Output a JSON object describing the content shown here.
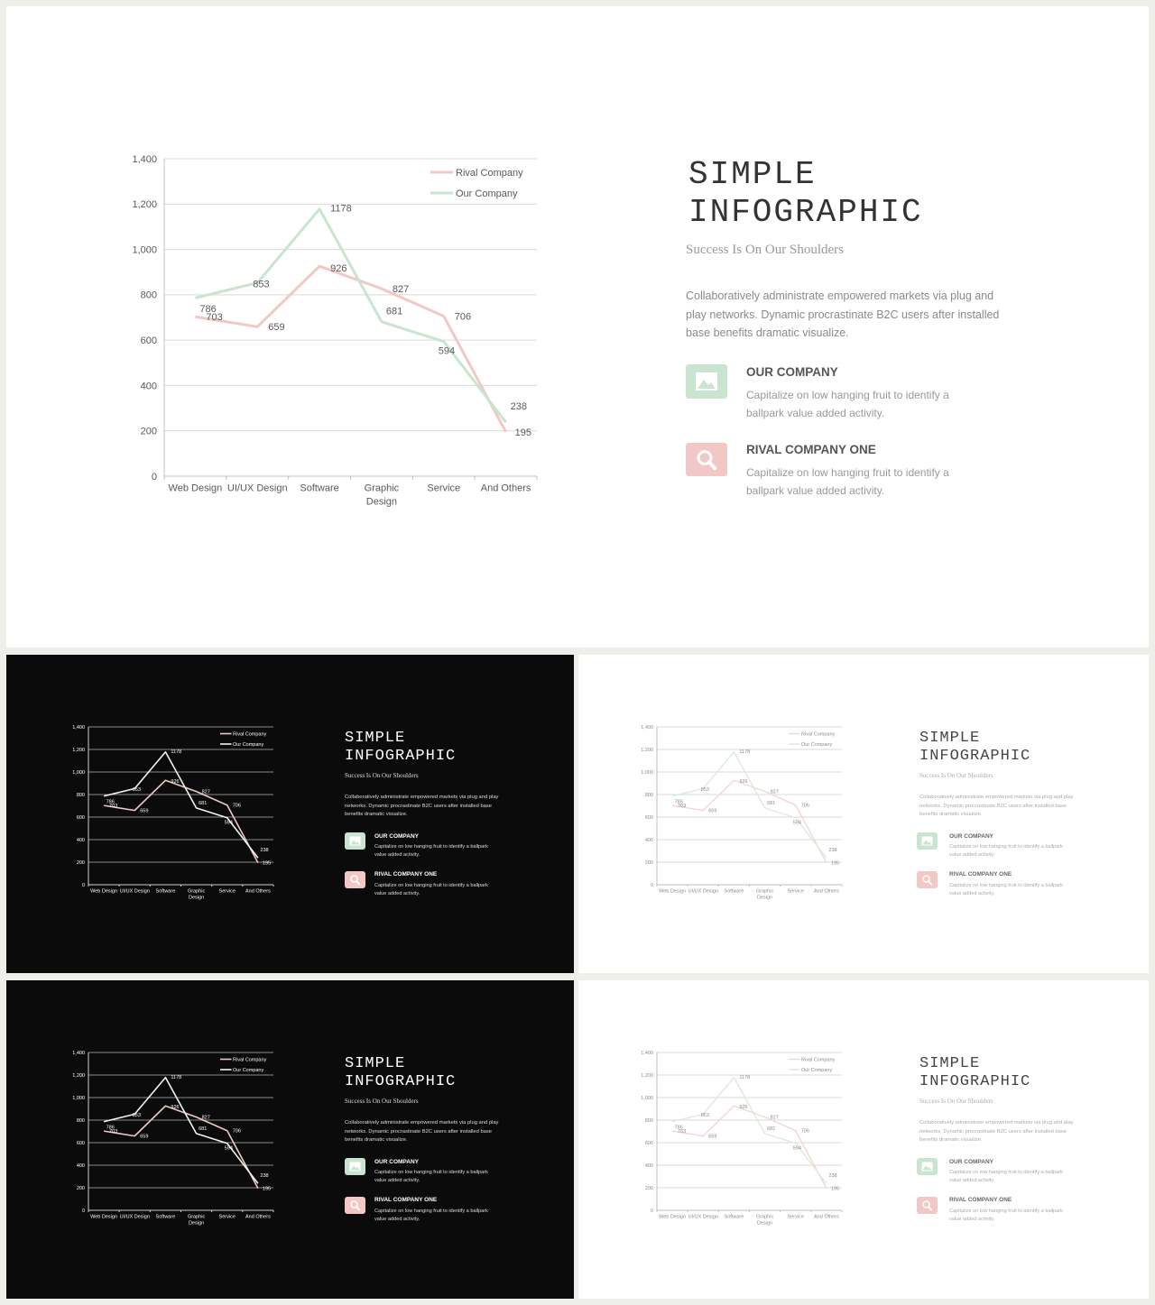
{
  "slide": {
    "title": "SIMPLE\nINFOGRAPHIC",
    "subtitle": "Success Is On Our Shoulders",
    "body": "Collaboratively administrate empowered  markets via plug and play networks. Dynamic procrastinate B2C users after installed base benefits dramatic visualize.",
    "items": [
      {
        "title": "OUR COMPANY",
        "desc": "Capitalize on low hanging fruit to identify a ballpark value added activity.",
        "icon": "mountain-image-icon",
        "color": "#c9e4cf"
      },
      {
        "title": "RIVAL COMPANY ONE",
        "desc": "Capitalize on low hanging fruit to identify a ballpark value added activity.",
        "icon": "search-icon",
        "color": "#f1c8c6"
      }
    ]
  },
  "colors": {
    "our_company": "#c9e4cf",
    "rival_company": "#f1c8c6",
    "dark_background": "#0b0b0b",
    "light_background": "#ffffff"
  },
  "chart_data": {
    "type": "line",
    "categories": [
      "Web Design",
      "UI/UX Design",
      "Software",
      "Graphic Design",
      "Service",
      "And Others"
    ],
    "series": [
      {
        "name": "Rival Company",
        "values": [
          703,
          659,
          926,
          827,
          706,
          195
        ],
        "color": "#f1c8c6"
      },
      {
        "name": "Our Company",
        "values": [
          786,
          853,
          1178,
          681,
          594,
          238
        ],
        "color": "#c9e4cf"
      }
    ],
    "y_ticks": [
      "0",
      "200",
      "400",
      "600",
      "800",
      "1,000",
      "1,200",
      "1,400"
    ],
    "ylim": [
      0,
      1400
    ],
    "ystep": 200,
    "grid": true,
    "legend_position": "top-right"
  }
}
